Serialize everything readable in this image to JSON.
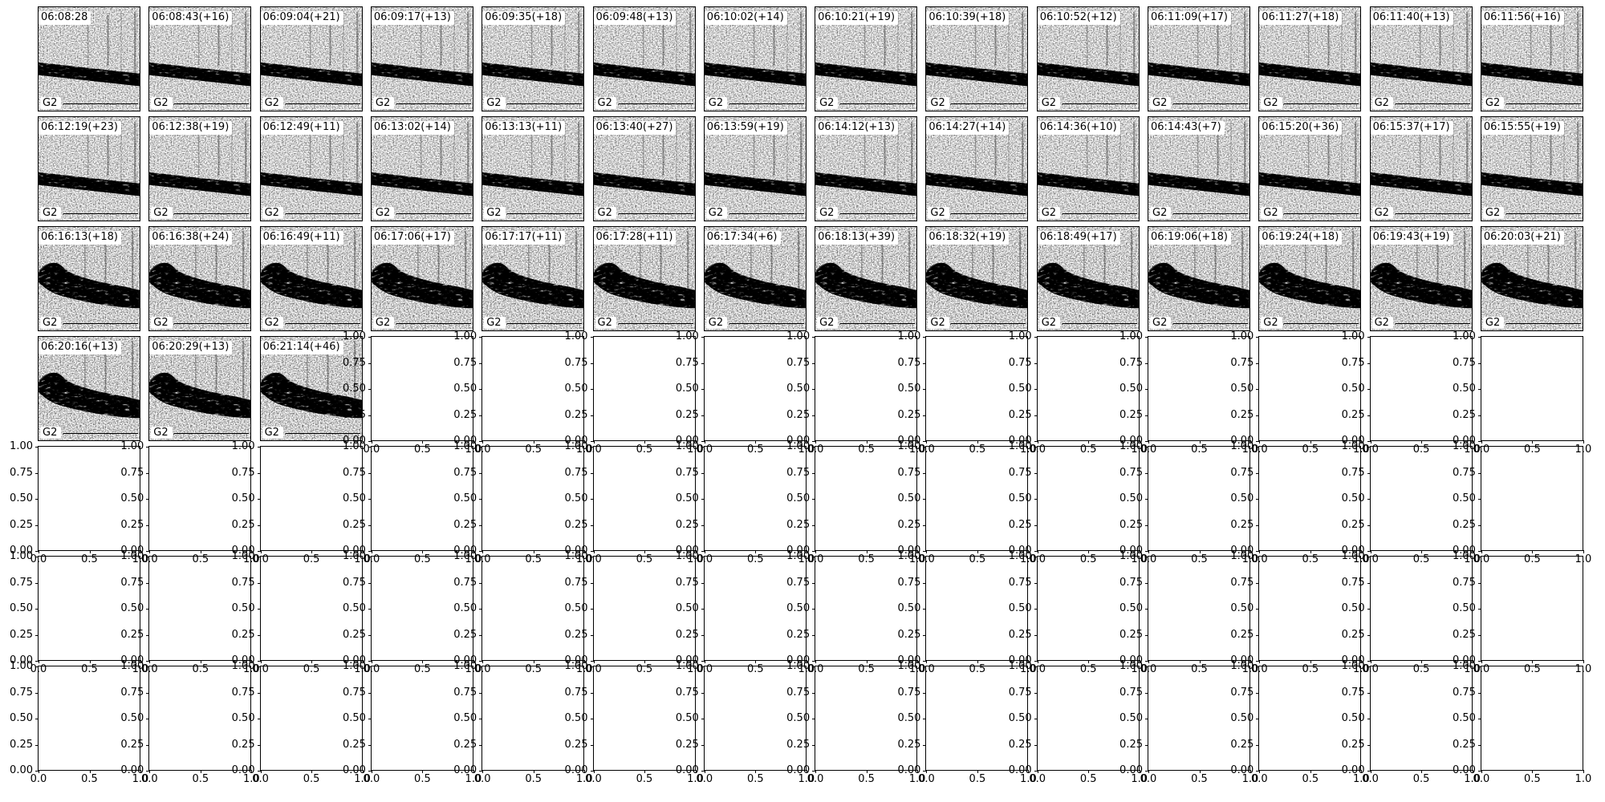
{
  "figure": {
    "background": "#ffffff",
    "foreground": "#000000"
  },
  "labels": {
    "spectrogram_tag": "G2"
  },
  "axes": {
    "y_tick_labels": [
      "1.00",
      "0.75",
      "0.50",
      "0.25",
      "0.00"
    ],
    "x_tick_labels": [
      "0.0",
      "0.5",
      "1.0"
    ]
  },
  "chart_data": {
    "type": "heatmap",
    "layout": {
      "rows": 7,
      "cols": 14
    },
    "panel_label": "G2",
    "empty_axes": {
      "xlim": [
        0.0,
        1.0
      ],
      "ylim": [
        0.0,
        1.0
      ],
      "xticks": [
        0.0,
        0.5,
        1.0
      ],
      "yticks": [
        0.0,
        0.25,
        0.5,
        0.75,
        1.0
      ]
    },
    "panel_titles_by_row": [
      [
        "06:08:28",
        "06:08:43(+16)",
        "06:09:04(+21)",
        "06:09:17(+13)",
        "06:09:35(+18)",
        "06:09:48(+13)",
        "06:10:02(+14)",
        "06:10:21(+19)",
        "06:10:39(+18)",
        "06:10:52(+12)",
        "06:11:09(+17)",
        "06:11:27(+18)",
        "06:11:40(+13)",
        "06:11:56(+16)"
      ],
      [
        "06:12:19(+23)",
        "06:12:38(+19)",
        "06:12:49(+11)",
        "06:13:02(+14)",
        "06:13:13(+11)",
        "06:13:40(+27)",
        "06:13:59(+19)",
        "06:14:12(+13)",
        "06:14:27(+14)",
        "06:14:36(+10)",
        "06:14:43(+7)",
        "06:15:20(+36)",
        "06:15:37(+17)",
        "06:15:55(+19)"
      ],
      [
        "06:16:13(+18)",
        "06:16:38(+24)",
        "06:16:49(+11)",
        "06:17:06(+17)",
        "06:17:17(+11)",
        "06:17:28(+11)",
        "06:17:34(+6)",
        "06:18:13(+39)",
        "06:18:32(+19)",
        "06:18:49(+17)",
        "06:19:06(+18)",
        "06:19:24(+18)",
        "06:19:43(+19)",
        "06:20:03(+21)"
      ],
      [
        "06:20:16(+13)",
        "06:20:29(+13)",
        "06:21:14(+46)"
      ],
      [],
      [],
      []
    ]
  }
}
